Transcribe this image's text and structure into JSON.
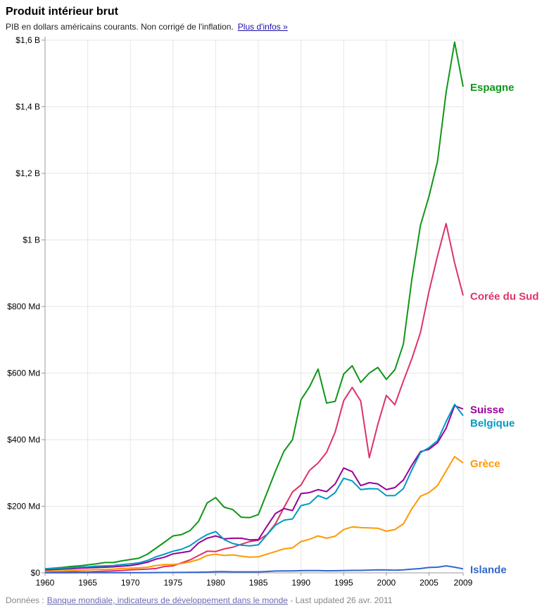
{
  "header": {
    "title": "Produit intérieur brut",
    "subtitle": "PIB en dollars américains courants. Non corrigé de l'inflation.",
    "more_link": "Plus d'infos »"
  },
  "footer": {
    "prefix": "Données :",
    "source": "Banque mondiale, indicateurs de développement dans le monde",
    "updated": "- Last updated 26 avr. 2011"
  },
  "chart_data": {
    "type": "line",
    "title": "Produit intérieur brut",
    "xlabel": "",
    "ylabel": "",
    "xlim": [
      1960,
      2009
    ],
    "ylim": [
      0,
      1600
    ],
    "x_ticks": [
      "1960",
      "1965",
      "1970",
      "1975",
      "1980",
      "1985",
      "1990",
      "1995",
      "2000",
      "2005",
      "2009"
    ],
    "y_ticks": [
      "$0",
      "$200 Md",
      "$400 Md",
      "$600 Md",
      "$800 Md",
      "$1 B",
      "$1,2 B",
      "$1,4 B",
      "$1,6 B"
    ],
    "x": [
      1960,
      1961,
      1962,
      1963,
      1964,
      1965,
      1966,
      1967,
      1968,
      1969,
      1970,
      1971,
      1972,
      1973,
      1974,
      1975,
      1976,
      1977,
      1978,
      1979,
      1980,
      1981,
      1982,
      1983,
      1984,
      1985,
      1986,
      1987,
      1988,
      1989,
      1990,
      1991,
      1992,
      1993,
      1994,
      1995,
      1996,
      1997,
      1998,
      1999,
      2000,
      2001,
      2002,
      2003,
      2004,
      2005,
      2006,
      2007,
      2008,
      2009
    ],
    "series": [
      {
        "name": "Espagne",
        "color": "#109618",
        "values": [
          12,
          14,
          16,
          19,
          21,
          24,
          27,
          31,
          31,
          36,
          40,
          44,
          56,
          74,
          92,
          111,
          115,
          127,
          155,
          210,
          226,
          197,
          190,
          167,
          166,
          175,
          240,
          305,
          365,
          400,
          520,
          559,
          612,
          510,
          515,
          597,
          622,
          572,
          600,
          617,
          581,
          610,
          687,
          884,
          1044,
          1131,
          1236,
          1443,
          1594,
          1460
        ]
      },
      {
        "name": "Corée du Sud",
        "color": "#dc3366",
        "values": [
          4,
          2,
          3,
          4,
          3,
          3,
          4,
          5,
          6,
          7,
          9,
          10,
          11,
          13,
          19,
          21,
          30,
          39,
          52,
          65,
          64,
          72,
          77,
          86,
          94,
          98,
          115,
          147,
          196,
          243,
          264,
          308,
          330,
          362,
          423,
          517,
          557,
          516,
          346,
          446,
          533,
          505,
          576,
          644,
          722,
          845,
          952,
          1049,
          931,
          833
        ]
      },
      {
        "name": "Suisse",
        "color": "#990099",
        "values": [
          8,
          10,
          11,
          12,
          14,
          15,
          16,
          17,
          18,
          20,
          22,
          26,
          32,
          41,
          47,
          57,
          61,
          65,
          90,
          104,
          111,
          102,
          104,
          104,
          99,
          100,
          140,
          178,
          193,
          187,
          238,
          241,
          250,
          244,
          267,
          315,
          304,
          262,
          271,
          267,
          250,
          256,
          279,
          324,
          364,
          371,
          391,
          434,
          502,
          492
        ]
      },
      {
        "name": "Belgique",
        "color": "#0099c6",
        "values": [
          12,
          13,
          14,
          15,
          17,
          18,
          20,
          21,
          22,
          25,
          27,
          30,
          37,
          48,
          56,
          65,
          71,
          82,
          100,
          115,
          124,
          100,
          88,
          83,
          81,
          84,
          114,
          143,
          158,
          162,
          202,
          208,
          232,
          222,
          241,
          284,
          276,
          250,
          253,
          252,
          232,
          232,
          253,
          310,
          361,
          376,
          397,
          454,
          506,
          472
        ]
      },
      {
        "name": "Grèce",
        "color": "#ff9900",
        "values": [
          5,
          6,
          6,
          7,
          8,
          9,
          10,
          10,
          11,
          13,
          14,
          15,
          17,
          22,
          25,
          25,
          28,
          33,
          40,
          52,
          56,
          52,
          54,
          50,
          47,
          48,
          56,
          64,
          72,
          75,
          94,
          101,
          111,
          104,
          110,
          130,
          138,
          136,
          135,
          134,
          125,
          130,
          147,
          193,
          230,
          241,
          262,
          306,
          349,
          330
        ]
      },
      {
        "name": "Islande",
        "color": "#3366cc",
        "values": [
          0.2,
          0.3,
          0.3,
          0.3,
          0.4,
          0.5,
          0.6,
          0.5,
          0.4,
          0.3,
          0.4,
          0.5,
          0.6,
          0.8,
          1,
          1,
          1.2,
          1.6,
          2,
          2.3,
          3.3,
          3.5,
          3,
          2.9,
          3,
          3,
          4,
          5.5,
          6,
          5.7,
          6.5,
          6.9,
          7,
          6.1,
          6.4,
          7,
          7.4,
          7.5,
          8.3,
          8.8,
          8.7,
          8,
          8.8,
          11,
          13,
          16,
          17,
          21,
          17,
          12
        ]
      }
    ]
  }
}
